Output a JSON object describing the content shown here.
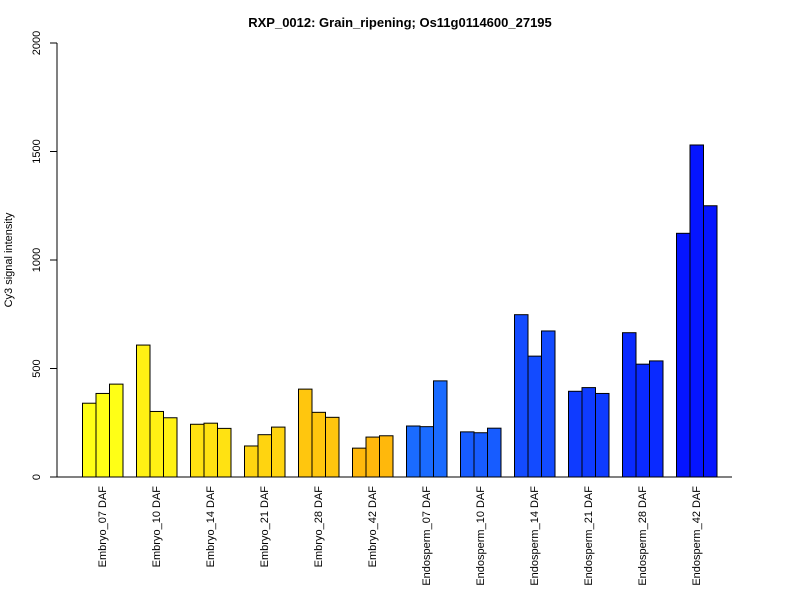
{
  "chart_data": {
    "type": "bar",
    "title": "RXP_0012: Grain_ripening; Os11g0114600_27195",
    "ylabel": "Cy3 signal intensity",
    "xlabel": "",
    "ylim": [
      0,
      2000
    ],
    "yticks": [
      0,
      500,
      1000,
      1500,
      2000
    ],
    "grid": false,
    "bars_per_group": 3,
    "groups": [
      {
        "label": "Embryo_07 DAF",
        "color": "#FFFF16",
        "values": [
          340,
          385,
          428
        ]
      },
      {
        "label": "Embryo_10 DAF",
        "color": "#FFF114",
        "values": [
          608,
          302,
          273
        ]
      },
      {
        "label": "Embryo_14 DAF",
        "color": "#FFE212",
        "values": [
          243,
          248,
          224
        ]
      },
      {
        "label": "Embryo_21 DAF",
        "color": "#FFD410",
        "values": [
          143,
          195,
          230
        ]
      },
      {
        "label": "Embryo_28 DAF",
        "color": "#FFC60E",
        "values": [
          405,
          298,
          275
        ]
      },
      {
        "label": "Embryo_42 DAF",
        "color": "#FFB80C",
        "values": [
          133,
          184,
          190
        ]
      },
      {
        "label": "Endosperm_07 DAF",
        "color": "#1A6BFF",
        "values": [
          235,
          232,
          443
        ]
      },
      {
        "label": "Endosperm_10 DAF",
        "color": "#175CFF",
        "values": [
          208,
          204,
          225
        ]
      },
      {
        "label": "Endosperm_14 DAF",
        "color": "#134BFF",
        "values": [
          748,
          557,
          673
        ]
      },
      {
        "label": "Endosperm_21 DAF",
        "color": "#0F3BFF",
        "values": [
          395,
          412,
          385
        ]
      },
      {
        "label": "Endosperm_28 DAF",
        "color": "#0A2AFF",
        "values": [
          665,
          520,
          535
        ]
      },
      {
        "label": "Endosperm_42 DAF",
        "color": "#0515FF",
        "values": [
          1123,
          1530,
          1250
        ]
      }
    ]
  }
}
